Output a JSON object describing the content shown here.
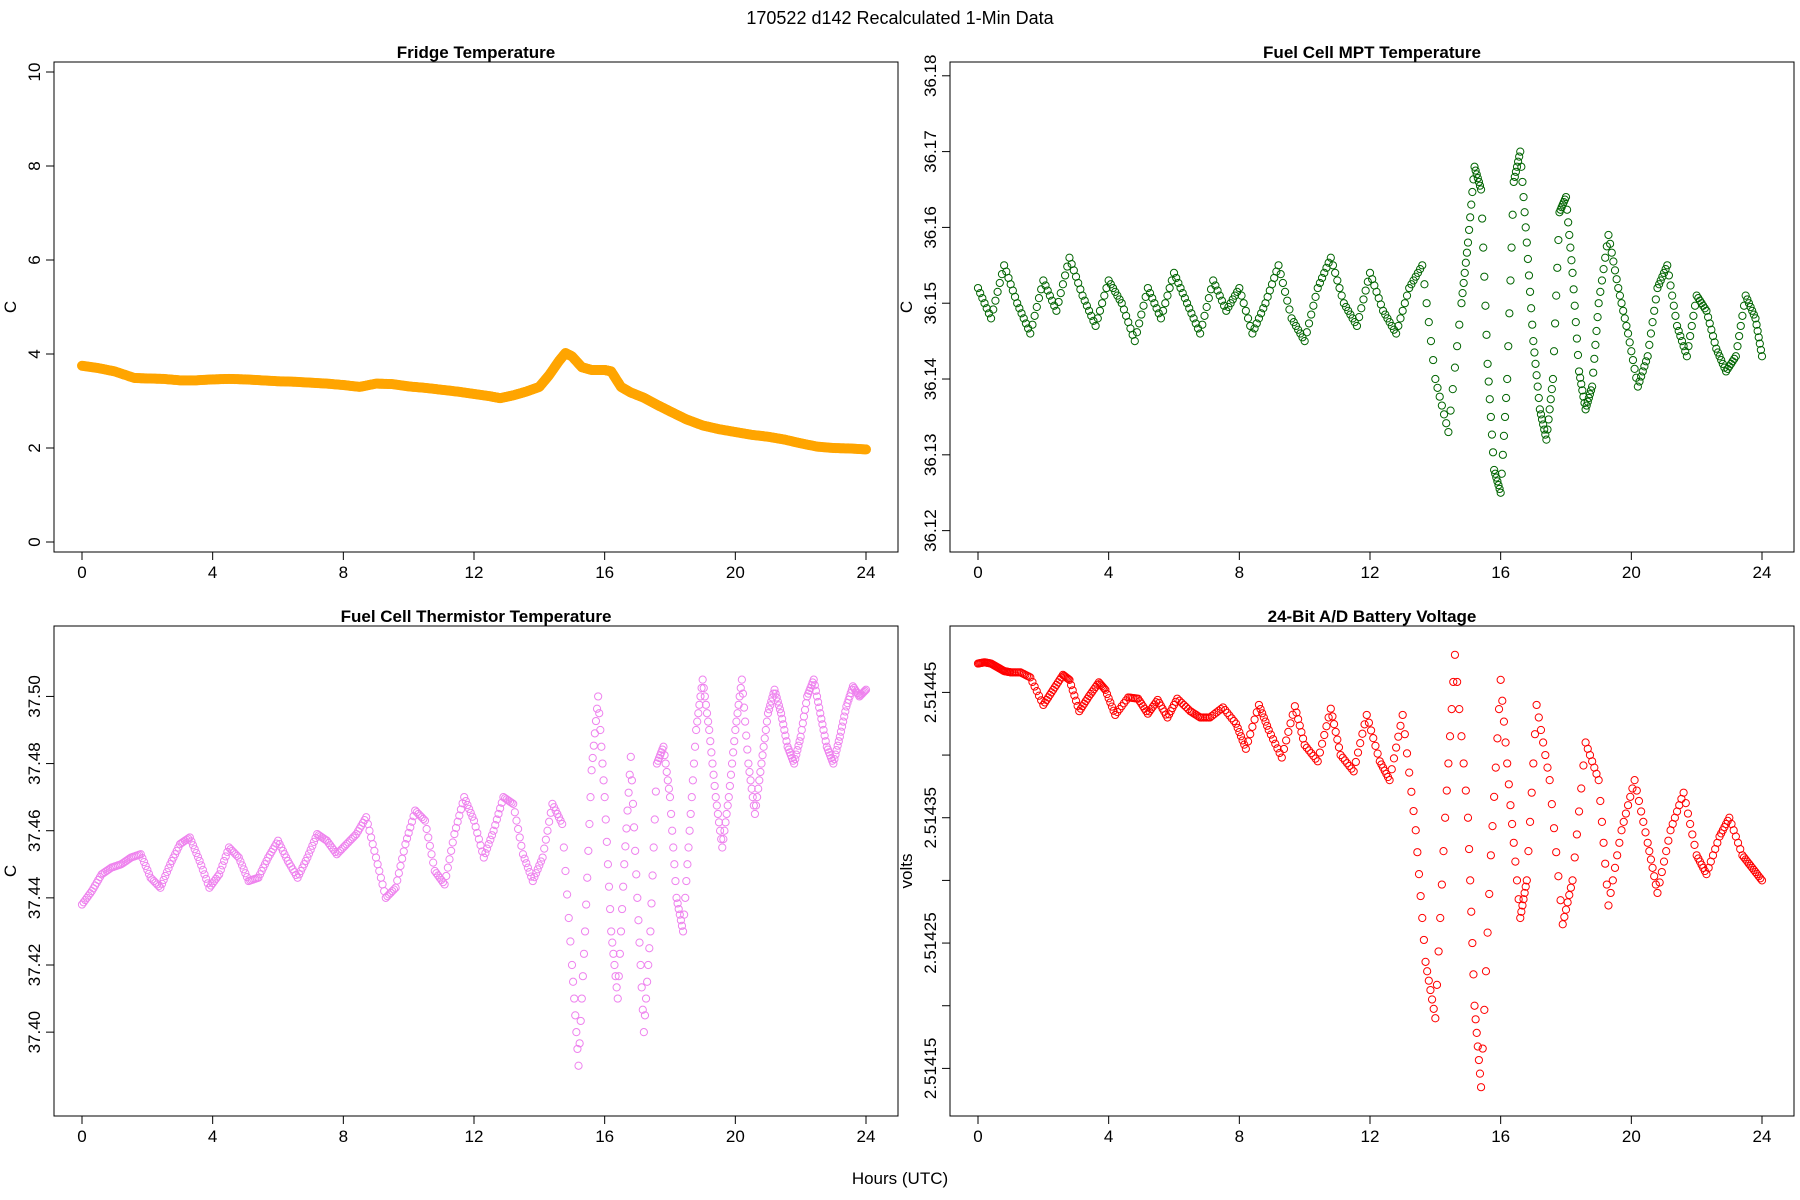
{
  "figure": {
    "title": "170522   d142   Recalculated 1-Min Data",
    "xlabel": "Hours (UTC)"
  },
  "chart_data": [
    {
      "id": "fridge",
      "type": "scatter",
      "title": "Fridge Temperature",
      "xlabel": "Hours (UTC)",
      "ylabel": "C",
      "xlim": [
        0,
        24
      ],
      "ylim": [
        0,
        10
      ],
      "xticks": [
        0,
        4,
        8,
        12,
        16,
        20,
        24
      ],
      "yticks": [
        0,
        2,
        4,
        6,
        8,
        10
      ],
      "ytick_labels": [
        "0",
        "2",
        "4",
        "6",
        "8",
        "10"
      ],
      "color": "#FFA500",
      "marker": "filled",
      "x": [
        0.0,
        0.5,
        1.0,
        1.6,
        2.0,
        2.5,
        3.0,
        3.5,
        4.0,
        4.5,
        5.0,
        5.5,
        6.0,
        6.5,
        7.0,
        7.5,
        8.0,
        8.5,
        9.0,
        9.5,
        10.0,
        10.5,
        11.0,
        11.5,
        12.0,
        12.5,
        12.8,
        13.2,
        13.6,
        14.0,
        14.3,
        14.6,
        14.8,
        15.0,
        15.3,
        15.6,
        16.0,
        16.2,
        16.5,
        16.8,
        17.2,
        17.6,
        18.0,
        18.5,
        19.0,
        19.5,
        20.0,
        20.5,
        21.0,
        21.5,
        22.0,
        22.5,
        23.0,
        23.5,
        24.0
      ],
      "y": [
        3.75,
        3.7,
        3.63,
        3.49,
        3.48,
        3.47,
        3.44,
        3.44,
        3.46,
        3.47,
        3.46,
        3.44,
        3.42,
        3.41,
        3.39,
        3.37,
        3.34,
        3.3,
        3.37,
        3.36,
        3.31,
        3.28,
        3.24,
        3.2,
        3.15,
        3.1,
        3.06,
        3.12,
        3.2,
        3.3,
        3.55,
        3.85,
        4.02,
        3.95,
        3.72,
        3.66,
        3.66,
        3.63,
        3.3,
        3.18,
        3.07,
        2.92,
        2.78,
        2.61,
        2.48,
        2.4,
        2.34,
        2.28,
        2.24,
        2.18,
        2.1,
        2.03,
        2.0,
        1.99,
        1.97
      ]
    },
    {
      "id": "mpt",
      "type": "scatter",
      "title": "Fuel Cell MPT Temperature",
      "xlabel": "Hours (UTC)",
      "ylabel": "C",
      "xlim": [
        0,
        24
      ],
      "ylim": [
        36.1185,
        36.1805
      ],
      "xticks": [
        0,
        4,
        8,
        12,
        16,
        20,
        24
      ],
      "yticks": [
        36.12,
        36.13,
        36.14,
        36.15,
        36.16,
        36.17,
        36.18
      ],
      "ytick_labels": [
        "36.12",
        "36.13",
        "36.14",
        "36.15",
        "36.16",
        "36.17",
        "36.18"
      ],
      "color": "#006400",
      "marker": "open",
      "x": [
        0.0,
        0.4,
        0.8,
        1.2,
        1.6,
        2.0,
        2.4,
        2.8,
        3.2,
        3.6,
        4.0,
        4.4,
        4.8,
        5.2,
        5.6,
        6.0,
        6.4,
        6.8,
        7.2,
        7.6,
        8.0,
        8.4,
        8.8,
        9.2,
        9.6,
        10.0,
        10.4,
        10.8,
        11.2,
        11.6,
        12.0,
        12.4,
        12.8,
        13.2,
        13.6,
        14.0,
        14.4,
        14.8,
        15.0,
        15.2,
        15.4,
        15.6,
        15.8,
        16.0,
        16.2,
        16.4,
        16.6,
        16.8,
        17.0,
        17.2,
        17.4,
        17.6,
        17.8,
        18.0,
        18.2,
        18.4,
        18.6,
        18.8,
        19.0,
        19.3,
        19.6,
        19.9,
        20.2,
        20.5,
        20.8,
        21.1,
        21.4,
        21.7,
        22.0,
        22.3,
        22.6,
        22.9,
        23.2,
        23.5,
        23.8,
        24.0
      ],
      "y": [
        36.152,
        36.148,
        36.155,
        36.15,
        36.146,
        36.153,
        36.149,
        36.156,
        36.151,
        36.147,
        36.153,
        36.15,
        36.145,
        36.152,
        36.148,
        36.154,
        36.15,
        36.146,
        36.153,
        36.149,
        36.152,
        36.146,
        36.15,
        36.155,
        36.148,
        36.145,
        36.152,
        36.156,
        36.15,
        36.147,
        36.154,
        36.149,
        36.146,
        36.152,
        36.155,
        36.14,
        36.133,
        36.15,
        36.158,
        36.168,
        36.165,
        36.142,
        36.128,
        36.125,
        36.14,
        36.166,
        36.17,
        36.158,
        36.145,
        36.136,
        36.132,
        36.14,
        36.162,
        36.164,
        36.154,
        36.141,
        36.136,
        36.139,
        36.15,
        36.159,
        36.152,
        36.146,
        36.139,
        36.143,
        36.152,
        36.155,
        36.147,
        36.143,
        36.151,
        36.149,
        36.144,
        36.141,
        36.143,
        36.151,
        36.148,
        36.143
      ]
    },
    {
      "id": "thermistor",
      "type": "scatter",
      "title": "Fuel Cell Thermistor Temperature",
      "xlabel": "Hours (UTC)",
      "ylabel": "C",
      "xlim": [
        0,
        24
      ],
      "ylim": [
        37.378,
        37.518
      ],
      "xticks": [
        0,
        4,
        8,
        12,
        16,
        20,
        24
      ],
      "yticks": [
        37.4,
        37.42,
        37.44,
        37.46,
        37.48,
        37.5
      ],
      "ytick_labels": [
        "37.40",
        "37.42",
        "37.44",
        "37.46",
        "37.48",
        "37.50"
      ],
      "color": "#EE82EE",
      "marker": "open",
      "x": [
        0.0,
        0.3,
        0.6,
        0.9,
        1.2,
        1.5,
        1.8,
        2.1,
        2.4,
        2.7,
        3.0,
        3.3,
        3.6,
        3.9,
        4.2,
        4.5,
        4.8,
        5.1,
        5.4,
        5.7,
        6.0,
        6.3,
        6.6,
        6.9,
        7.2,
        7.5,
        7.8,
        8.1,
        8.4,
        8.7,
        9.0,
        9.3,
        9.6,
        9.9,
        10.2,
        10.5,
        10.8,
        11.1,
        11.4,
        11.7,
        12.0,
        12.3,
        12.6,
        12.9,
        13.2,
        13.5,
        13.8,
        14.1,
        14.4,
        14.7,
        15.0,
        15.2,
        15.4,
        15.6,
        15.8,
        16.0,
        16.2,
        16.4,
        16.6,
        16.8,
        17.0,
        17.2,
        17.4,
        17.6,
        17.8,
        18.0,
        18.2,
        18.4,
        18.6,
        18.8,
        19.0,
        19.2,
        19.4,
        19.6,
        19.8,
        20.0,
        20.2,
        20.4,
        20.6,
        20.8,
        21.0,
        21.2,
        21.4,
        21.6,
        21.8,
        22.0,
        22.2,
        22.4,
        22.6,
        22.8,
        23.0,
        23.2,
        23.4,
        23.6,
        23.8,
        24.0
      ],
      "y": [
        37.438,
        37.442,
        37.447,
        37.449,
        37.45,
        37.452,
        37.453,
        37.446,
        37.443,
        37.45,
        37.456,
        37.458,
        37.451,
        37.443,
        37.447,
        37.455,
        37.452,
        37.445,
        37.446,
        37.452,
        37.457,
        37.451,
        37.446,
        37.452,
        37.459,
        37.457,
        37.453,
        37.456,
        37.459,
        37.464,
        37.452,
        37.44,
        37.443,
        37.456,
        37.466,
        37.463,
        37.448,
        37.444,
        37.459,
        37.47,
        37.463,
        37.452,
        37.46,
        37.47,
        37.468,
        37.453,
        37.445,
        37.452,
        37.468,
        37.462,
        37.42,
        37.39,
        37.43,
        37.478,
        37.5,
        37.47,
        37.43,
        37.41,
        37.45,
        37.482,
        37.44,
        37.4,
        37.43,
        37.48,
        37.485,
        37.47,
        37.44,
        37.43,
        37.46,
        37.49,
        37.505,
        37.49,
        37.47,
        37.455,
        37.47,
        37.49,
        37.505,
        37.48,
        37.465,
        37.48,
        37.495,
        37.502,
        37.495,
        37.485,
        37.48,
        37.488,
        37.5,
        37.505,
        37.495,
        37.485,
        37.48,
        37.488,
        37.497,
        37.503,
        37.5,
        37.502
      ]
    },
    {
      "id": "battery",
      "type": "scatter",
      "title": "24-Bit A/D Battery Voltage",
      "xlabel": "Hours (UTC)",
      "ylabel": "volts",
      "xlim": [
        0,
        24
      ],
      "ylim": [
        2.51412,
        2.514495
      ],
      "xticks": [
        0,
        4,
        8,
        12,
        16,
        20,
        24
      ],
      "yticks": [
        2.51415,
        2.5142,
        2.51425,
        2.5143,
        2.51435,
        2.5144,
        2.51445
      ],
      "ytick_labels": [
        "2.51415",
        "",
        "2.51425",
        "",
        "2.51435",
        "",
        "2.51445"
      ],
      "color": "#FF0000",
      "marker": "open",
      "x": [
        0.0,
        0.2,
        0.4,
        0.6,
        0.8,
        1.0,
        1.3,
        1.6,
        2.0,
        2.3,
        2.6,
        2.8,
        3.1,
        3.4,
        3.7,
        3.9,
        4.2,
        4.6,
        4.9,
        5.2,
        5.5,
        5.8,
        6.1,
        6.5,
        6.8,
        7.1,
        7.5,
        7.9,
        8.2,
        8.6,
        8.9,
        9.3,
        9.7,
        10.0,
        10.4,
        10.8,
        11.1,
        11.5,
        11.9,
        12.3,
        12.6,
        13.0,
        13.4,
        13.7,
        14.0,
        14.3,
        14.6,
        15.0,
        15.2,
        15.4,
        15.7,
        16.0,
        16.3,
        16.6,
        16.8,
        17.1,
        17.5,
        17.9,
        18.2,
        18.6,
        19.0,
        19.3,
        19.7,
        20.1,
        20.5,
        20.8,
        21.2,
        21.6,
        22.0,
        22.3,
        22.7,
        23.0,
        23.4,
        23.7,
        24.0
      ],
      "y": [
        2.514473,
        2.514474,
        2.514473,
        2.51447,
        2.514467,
        2.514466,
        2.514466,
        2.514462,
        2.51444,
        2.514452,
        2.514464,
        2.51446,
        2.514435,
        2.514447,
        2.514458,
        2.514452,
        2.514432,
        2.514446,
        2.514445,
        2.514433,
        2.514444,
        2.51443,
        2.514445,
        2.514435,
        2.51443,
        2.51443,
        2.514438,
        2.514425,
        2.514405,
        2.51444,
        2.51442,
        2.514398,
        2.514439,
        2.514408,
        2.514395,
        2.514437,
        2.5144,
        2.514387,
        2.514432,
        2.514395,
        2.51438,
        2.514432,
        2.51434,
        2.514235,
        2.51419,
        2.51435,
        2.51448,
        2.51435,
        2.5142,
        2.514135,
        2.51432,
        2.51446,
        2.51436,
        2.51427,
        2.5143,
        2.51444,
        2.51438,
        2.514265,
        2.5143,
        2.51441,
        2.51438,
        2.51428,
        2.51434,
        2.51438,
        2.51433,
        2.51429,
        2.51434,
        2.51437,
        2.51432,
        2.514305,
        2.514335,
        2.51435,
        2.51432,
        2.51431,
        2.5143
      ]
    }
  ]
}
